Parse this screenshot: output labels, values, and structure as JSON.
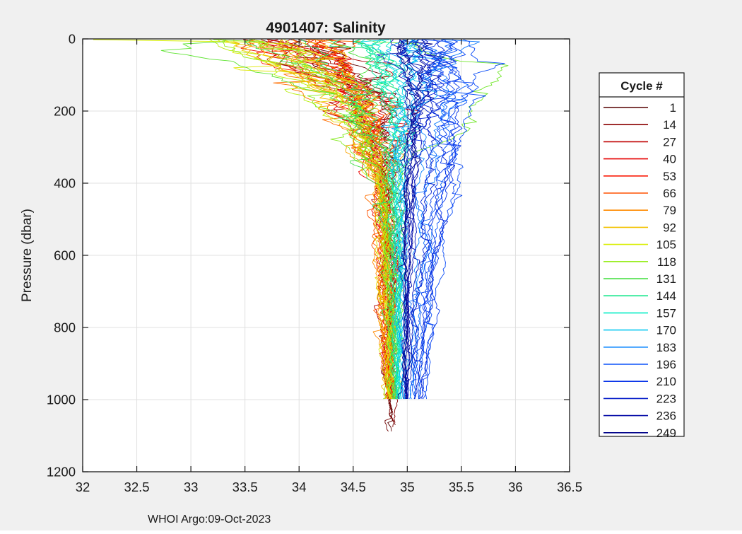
{
  "figure": {
    "background": "#f0f0f0"
  },
  "footer": {
    "text": "WHOI Argo:09-Oct-2023"
  },
  "chart_data": {
    "type": "line",
    "title": "4901407:  Salinity",
    "xlabel": "",
    "ylabel": "Pressure (dbar)",
    "xlim": [
      32,
      36.5
    ],
    "ylim": [
      0,
      1200
    ],
    "y_inverted": true,
    "grid": true,
    "axis_color": "#1a1a1a",
    "grid_color": "#e0e0e0",
    "plot_bg": "#ffffff",
    "xtick_values": [
      32,
      32.5,
      33,
      33.5,
      34,
      34.5,
      35,
      35.5,
      36,
      36.5
    ],
    "xtick_labels": [
      "32",
      "32.5",
      "33",
      "33.5",
      "34",
      "34.5",
      "35",
      "35.5",
      "36",
      "36.5"
    ],
    "ytick_values": [
      0,
      200,
      400,
      600,
      800,
      1000,
      1200
    ],
    "ytick_labels": [
      "0",
      "200",
      "400",
      "600",
      "800",
      "1000",
      "1200"
    ],
    "legend": {
      "title": "Cycle #",
      "position": "right-outside",
      "entries": [
        {
          "label": "1",
          "color": "#570000"
        },
        {
          "label": "14",
          "color": "#8b0000"
        },
        {
          "label": "27",
          "color": "#bf0000"
        },
        {
          "label": "40",
          "color": "#e60000"
        },
        {
          "label": "53",
          "color": "#fb1500"
        },
        {
          "label": "66",
          "color": "#ff5000"
        },
        {
          "label": "79",
          "color": "#ff8a00"
        },
        {
          "label": "92",
          "color": "#f2c200"
        },
        {
          "label": "105",
          "color": "#d9ee00"
        },
        {
          "label": "118",
          "color": "#97ee1c"
        },
        {
          "label": "131",
          "color": "#3edd3a"
        },
        {
          "label": "144",
          "color": "#17e68c"
        },
        {
          "label": "157",
          "color": "#06eec6"
        },
        {
          "label": "170",
          "color": "#0cc9f2"
        },
        {
          "label": "183",
          "color": "#0d87ff"
        },
        {
          "label": "196",
          "color": "#0b52fa"
        },
        {
          "label": "210",
          "color": "#0531e8"
        },
        {
          "label": "223",
          "color": "#041bc8"
        },
        {
          "label": "236",
          "color": "#0309a6"
        },
        {
          "label": "249",
          "color": "#03058a"
        }
      ]
    },
    "anchor_pressures": [
      0,
      150,
      400,
      1000
    ],
    "profiles": [
      {
        "c": 1,
        "v": [
          33.9,
          34.62,
          34.8,
          34.86
        ],
        "pm": 1088,
        "n": 0.13
      },
      {
        "c": 4,
        "v": [
          34.3,
          34.7,
          34.82,
          34.87
        ],
        "pm": 1075,
        "n": 0.13
      },
      {
        "c": 7,
        "v": [
          33.6,
          34.58,
          34.79,
          34.85
        ],
        "pm": 1092,
        "n": 0.13
      },
      {
        "c": 10,
        "v": [
          34.1,
          34.66,
          34.81,
          34.86
        ],
        "pm": 1081,
        "n": 0.13
      },
      {
        "c": 13,
        "v": [
          33.8,
          34.55,
          34.78,
          34.84
        ],
        "pm": 1068,
        "n": 0.13
      },
      {
        "c": 16,
        "v": [
          34.4,
          34.72,
          34.83,
          34.87
        ],
        "pm": 1000,
        "n": 0.13
      },
      {
        "c": 19,
        "v": [
          33.5,
          34.5,
          34.77,
          34.84
        ],
        "pm": 998,
        "n": 0.13
      },
      {
        "c": 22,
        "v": [
          34.2,
          34.65,
          34.8,
          34.86
        ],
        "pm": 1003,
        "n": 0.13
      },
      {
        "c": 25,
        "v": [
          33.7,
          34.52,
          34.76,
          34.83
        ],
        "pm": 1000,
        "n": 0.13
      },
      {
        "c": 28,
        "v": [
          34.0,
          34.6,
          34.79,
          34.85
        ],
        "pm": 997,
        "n": 0.13
      },
      {
        "c": 31,
        "v": [
          33.45,
          34.48,
          34.75,
          34.83
        ],
        "pm": 1002,
        "n": 0.13
      },
      {
        "c": 34,
        "v": [
          34.25,
          34.68,
          34.81,
          34.86
        ],
        "pm": 1000,
        "n": 0.13
      },
      {
        "c": 37,
        "v": [
          33.85,
          34.56,
          34.78,
          34.84
        ],
        "pm": 999,
        "n": 0.13
      },
      {
        "c": 40,
        "v": [
          34.1,
          34.63,
          34.8,
          34.85
        ],
        "pm": 1001,
        "n": 0.13
      },
      {
        "c": 43,
        "v": [
          33.55,
          34.45,
          34.74,
          34.82
        ],
        "pm": 1000,
        "n": 0.13
      },
      {
        "c": 46,
        "v": [
          34.35,
          34.7,
          34.82,
          34.86
        ],
        "pm": 998,
        "n": 0.13
      },
      {
        "c": 49,
        "v": [
          33.95,
          34.58,
          34.77,
          34.84
        ],
        "pm": 1002,
        "n": 0.13
      },
      {
        "c": 52,
        "v": [
          34.15,
          34.64,
          34.79,
          34.85
        ],
        "pm": 1000,
        "n": 0.13
      },
      {
        "c": 55,
        "v": [
          33.65,
          34.5,
          34.76,
          34.83
        ],
        "pm": 1000,
        "n": 0.13
      },
      {
        "c": 58,
        "v": [
          34.05,
          34.6,
          34.78,
          34.84
        ],
        "pm": 999,
        "n": 0.13
      },
      {
        "c": 61,
        "v": [
          33.75,
          34.54,
          34.77,
          34.84
        ],
        "pm": 1001,
        "n": 0.13
      },
      {
        "c": 64,
        "v": [
          34.2,
          34.66,
          34.8,
          34.85
        ],
        "pm": 1000,
        "n": 0.13
      },
      {
        "c": 67,
        "v": [
          33.5,
          34.42,
          34.74,
          34.82
        ],
        "pm": 998,
        "n": 0.13
      },
      {
        "c": 70,
        "v": [
          34.0,
          34.58,
          34.78,
          34.84
        ],
        "pm": 1002,
        "n": 0.13
      },
      {
        "c": 73,
        "v": [
          33.6,
          34.46,
          34.75,
          34.83
        ],
        "pm": 1000,
        "n": 0.13
      },
      {
        "c": 76,
        "v": [
          33.9,
          34.55,
          34.77,
          34.84
        ],
        "pm": 1000,
        "n": 0.13
      },
      {
        "c": 79,
        "a": [
          [
            0,
            33.7
          ],
          [
            150,
            34.5
          ],
          [
            250,
            34.56
          ],
          [
            400,
            34.76
          ],
          [
            1000,
            34.83
          ]
        ],
        "pm": 1001,
        "n": 0.13
      },
      {
        "c": 82,
        "v": [
          34.1,
          34.62,
          34.79,
          34.85
        ],
        "pm": 999,
        "n": 0.13
      },
      {
        "c": 85,
        "v": [
          33.4,
          34.4,
          34.73,
          34.82
        ],
        "pm": 1000,
        "n": 0.13
      },
      {
        "c": 88,
        "v": [
          33.95,
          34.56,
          34.78,
          34.84
        ],
        "pm": 1000,
        "n": 0.13
      },
      {
        "c": 91,
        "v": [
          33.55,
          34.46,
          34.75,
          34.83
        ],
        "pm": 1002,
        "n": 0.13
      },
      {
        "c": 94,
        "v": [
          34.05,
          34.6,
          34.79,
          34.85
        ],
        "pm": 1000,
        "n": 0.13
      },
      {
        "c": 97,
        "v": [
          33.3,
          34.36,
          34.72,
          34.82
        ],
        "pm": 998,
        "n": 0.13
      },
      {
        "c": 100,
        "v": [
          33.8,
          34.52,
          34.77,
          34.84
        ],
        "pm": 1000,
        "n": 0.13
      },
      {
        "c": 103,
        "v": [
          33.5,
          34.44,
          34.76,
          34.84
        ],
        "pm": 1001,
        "n": 0.13
      },
      {
        "c": 106,
        "a": [
          [
            2,
            32.08
          ],
          [
            10,
            33.9
          ],
          [
            60,
            34.3
          ],
          [
            150,
            34.55
          ],
          [
            400,
            34.82
          ],
          [
            1000,
            34.87
          ]
        ],
        "pm": 1000,
        "n": 0.12
      },
      {
        "c": 109,
        "v": [
          33.9,
          34.55,
          34.8,
          34.86
        ],
        "pm": 999,
        "n": 0.14
      },
      {
        "c": 112,
        "v": [
          33.2,
          34.3,
          34.76,
          34.85
        ],
        "pm": 1000,
        "n": 0.15
      },
      {
        "c": 115,
        "v": [
          33.6,
          34.45,
          34.8,
          34.86
        ],
        "pm": 1002,
        "n": 0.15
      },
      {
        "c": 118,
        "a": [
          [
            0,
            33.3
          ],
          [
            60,
            33.9
          ],
          [
            100,
            34.05
          ],
          [
            160,
            34.35
          ],
          [
            300,
            34.7
          ],
          [
            400,
            34.84
          ],
          [
            1000,
            34.88
          ]
        ],
        "pm": 1000,
        "n": 0.15
      },
      {
        "c": 121,
        "v": [
          33.15,
          34.25,
          34.8,
          34.87
        ],
        "pm": 1000,
        "n": 0.15
      },
      {
        "c": 124,
        "a": [
          [
            0,
            34.6
          ],
          [
            55,
            35.3
          ],
          [
            70,
            36.14
          ],
          [
            150,
            35.7
          ],
          [
            210,
            35.5
          ],
          [
            250,
            35.62
          ],
          [
            310,
            35.1
          ],
          [
            400,
            34.96
          ],
          [
            1000,
            34.9
          ]
        ],
        "pm": 1000,
        "n": 0.1
      },
      {
        "c": 127,
        "v": [
          33.4,
          34.4,
          34.82,
          34.88
        ],
        "pm": 999,
        "n": 0.15
      },
      {
        "c": 130,
        "v": [
          34.3,
          34.75,
          34.86,
          34.89
        ],
        "pm": 1000,
        "n": 0.14
      },
      {
        "c": 133,
        "a": [
          [
            0,
            33.5
          ],
          [
            120,
            34.45
          ],
          [
            200,
            34.5
          ],
          [
            350,
            34.72
          ],
          [
            420,
            34.86
          ],
          [
            1000,
            34.89
          ]
        ],
        "pm": 1001,
        "n": 0.15
      },
      {
        "c": 136,
        "v": [
          34.6,
          34.85,
          34.88,
          34.9
        ],
        "pm": 1000,
        "n": 0.12
      },
      {
        "c": 139,
        "v": [
          33.9,
          34.6,
          34.85,
          34.89
        ],
        "pm": 1000,
        "n": 0.14
      },
      {
        "c": 142,
        "v": [
          34.4,
          34.8,
          34.87,
          34.9
        ],
        "pm": 998,
        "n": 0.12
      },
      {
        "c": 145,
        "v": [
          34.7,
          34.88,
          34.89,
          34.91
        ],
        "pm": 1000,
        "n": 0.09
      },
      {
        "c": 148,
        "v": [
          34.55,
          34.84,
          34.88,
          34.9
        ],
        "pm": 1000,
        "n": 0.09
      },
      {
        "c": 151,
        "v": [
          34.8,
          34.9,
          34.9,
          34.92
        ],
        "pm": 1001,
        "n": 0.08
      },
      {
        "c": 154,
        "v": [
          34.65,
          34.86,
          34.89,
          34.91
        ],
        "pm": 1000,
        "n": 0.08
      },
      {
        "c": 157,
        "v": [
          34.9,
          34.92,
          34.91,
          34.92
        ],
        "pm": 1000,
        "n": 0.08
      },
      {
        "c": 160,
        "v": [
          34.75,
          34.88,
          34.9,
          34.92
        ],
        "pm": 999,
        "n": 0.08
      },
      {
        "c": 163,
        "v": [
          35.0,
          34.95,
          34.92,
          34.93
        ],
        "pm": 1000,
        "n": 0.08
      },
      {
        "c": 166,
        "v": [
          34.85,
          34.9,
          34.91,
          34.92
        ],
        "pm": 1000,
        "n": 0.08
      },
      {
        "c": 169,
        "v": [
          35.05,
          34.98,
          34.93,
          34.94
        ],
        "pm": 1001,
        "n": 0.08
      },
      {
        "c": 172,
        "v": [
          34.95,
          34.94,
          34.92,
          34.93
        ],
        "pm": 1000,
        "n": 0.08
      },
      {
        "c": 175,
        "v": [
          35.1,
          35.02,
          34.95,
          34.95
        ],
        "pm": 1000,
        "n": 0.09
      },
      {
        "c": 178,
        "v": [
          35.0,
          35.0,
          34.96,
          34.96
        ],
        "pm": 1000,
        "n": 0.09
      },
      {
        "c": 181,
        "v": [
          35.15,
          35.1,
          35.0,
          34.98
        ],
        "pm": 998,
        "n": 0.1
      },
      {
        "c": 184,
        "v": [
          34.95,
          35.15,
          35.1,
          35.02
        ],
        "pm": 1000,
        "n": 0.1
      },
      {
        "c": 187,
        "v": [
          35.3,
          35.3,
          35.2,
          35.06
        ],
        "pm": 1000,
        "n": 0.1
      },
      {
        "c": 190,
        "v": [
          35.1,
          35.25,
          35.18,
          35.05
        ],
        "pm": 1002,
        "n": 0.1
      },
      {
        "c": 193,
        "v": [
          35.4,
          35.45,
          35.3,
          35.1
        ],
        "pm": 1000,
        "n": 0.1
      },
      {
        "c": 196,
        "v": [
          35.2,
          35.35,
          35.28,
          35.08
        ],
        "pm": 1000,
        "n": 0.1
      },
      {
        "c": 199,
        "v": [
          35.5,
          35.5,
          35.42,
          35.15
        ],
        "pm": 999,
        "n": 0.09
      },
      {
        "c": 202,
        "v": [
          35.3,
          35.4,
          35.35,
          35.12
        ],
        "pm": 1000,
        "n": 0.1
      },
      {
        "c": 205,
        "v": [
          35.15,
          35.3,
          35.25,
          35.08
        ],
        "pm": 1000,
        "n": 0.1
      },
      {
        "c": 208,
        "v": [
          35.45,
          35.48,
          35.38,
          35.14
        ],
        "pm": 1001,
        "n": 0.09
      },
      {
        "c": 211,
        "v": [
          35.25,
          35.38,
          35.3,
          35.1
        ],
        "pm": 1000,
        "n": 0.1
      },
      {
        "c": 214,
        "v": [
          35.05,
          35.2,
          35.15,
          35.05
        ],
        "pm": 1000,
        "n": 0.1
      },
      {
        "c": 217,
        "v": [
          35.35,
          35.42,
          35.32,
          35.12
        ],
        "pm": 998,
        "n": 0.1
      },
      {
        "c": 220,
        "v": [
          35.1,
          35.22,
          35.18,
          35.06
        ],
        "pm": 1000,
        "n": 0.1
      },
      {
        "c": 223,
        "v": [
          34.95,
          35.1,
          35.05,
          35.0
        ],
        "pm": 1000,
        "n": 0.06
      },
      {
        "c": 226,
        "v": [
          35.2,
          35.18,
          35.08,
          35.02
        ],
        "pm": 1001,
        "n": 0.06
      },
      {
        "c": 229,
        "v": [
          35.0,
          35.08,
          35.02,
          34.98
        ],
        "pm": 1000,
        "n": 0.06
      },
      {
        "c": 232,
        "v": [
          35.15,
          35.15,
          35.06,
          35.0
        ],
        "pm": 1000,
        "n": 0.06
      },
      {
        "c": 235,
        "v": [
          34.9,
          35.0,
          34.98,
          34.96
        ],
        "pm": 999,
        "n": 0.06
      },
      {
        "c": 238,
        "v": [
          35.1,
          35.12,
          35.04,
          35.0
        ],
        "pm": 1000,
        "n": 0.06
      },
      {
        "c": 241,
        "v": [
          34.95,
          35.05,
          35.0,
          34.97
        ],
        "pm": 1000,
        "n": 0.06
      },
      {
        "c": 244,
        "v": [
          35.05,
          35.1,
          35.02,
          34.99
        ],
        "pm": 1002,
        "n": 0.06
      },
      {
        "c": 247,
        "v": [
          34.9,
          35.02,
          34.98,
          34.96
        ],
        "pm": 1000,
        "n": 0.06
      },
      {
        "c": 250,
        "v": [
          35.0,
          35.06,
          35.0,
          34.98
        ],
        "pm": 1000,
        "n": 0.06
      }
    ]
  }
}
